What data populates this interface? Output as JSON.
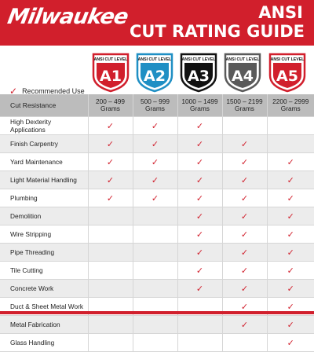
{
  "header": {
    "logo": "Milwaukee",
    "title_line1": "ANSI",
    "title_line2": "CUT RATING GUIDE"
  },
  "badges": [
    {
      "label": "ANSI CUT LEVEL",
      "level": "A1",
      "color": "#d11f2c"
    },
    {
      "label": "ANSI CUT LEVEL",
      "level": "A2",
      "color": "#1f8fc4"
    },
    {
      "label": "ANSI CUT LEVEL",
      "level": "A3",
      "color": "#111111"
    },
    {
      "label": "ANSI CUT LEVEL",
      "level": "A4",
      "color": "#5a5a5a"
    },
    {
      "label": "ANSI CUT LEVEL",
      "level": "A5",
      "color": "#d11f2c"
    }
  ],
  "legend": {
    "check": "✓",
    "label": "Recommended Use"
  },
  "table": {
    "header_label": "Cut Resistance",
    "columns": [
      {
        "range": "200 – 499",
        "unit": "Grams"
      },
      {
        "range": "500 – 999",
        "unit": "Grams"
      },
      {
        "range": "1000 – 1499",
        "unit": "Grams"
      },
      {
        "range": "1500 – 2199",
        "unit": "Grams"
      },
      {
        "range": "2200 – 2999",
        "unit": "Grams"
      }
    ],
    "rows": [
      {
        "label": "High Dexterity Applications",
        "checks": [
          true,
          true,
          true,
          false,
          false
        ]
      },
      {
        "label": "Finish Carpentry",
        "checks": [
          true,
          true,
          true,
          true,
          false
        ]
      },
      {
        "label": "Yard Maintenance",
        "checks": [
          true,
          true,
          true,
          true,
          true
        ]
      },
      {
        "label": "Light Material Handling",
        "checks": [
          true,
          true,
          true,
          true,
          true
        ]
      },
      {
        "label": "Plumbing",
        "checks": [
          true,
          true,
          true,
          true,
          true
        ]
      },
      {
        "label": "Demolition",
        "checks": [
          false,
          false,
          true,
          true,
          true
        ]
      },
      {
        "label": "Wire Stripping",
        "checks": [
          false,
          false,
          true,
          true,
          true
        ]
      },
      {
        "label": "Pipe Threading",
        "checks": [
          false,
          false,
          true,
          true,
          true
        ]
      },
      {
        "label": "Tile Cutting",
        "checks": [
          false,
          false,
          true,
          true,
          true
        ]
      },
      {
        "label": "Concrete Work",
        "checks": [
          false,
          false,
          true,
          true,
          true
        ]
      },
      {
        "label": "Duct & Sheet Metal Work",
        "checks": [
          false,
          false,
          false,
          true,
          true
        ]
      },
      {
        "label": "Metal Fabrication",
        "checks": [
          false,
          false,
          false,
          true,
          true
        ]
      },
      {
        "label": "Glass Handling",
        "checks": [
          false,
          false,
          false,
          false,
          true
        ]
      }
    ]
  }
}
